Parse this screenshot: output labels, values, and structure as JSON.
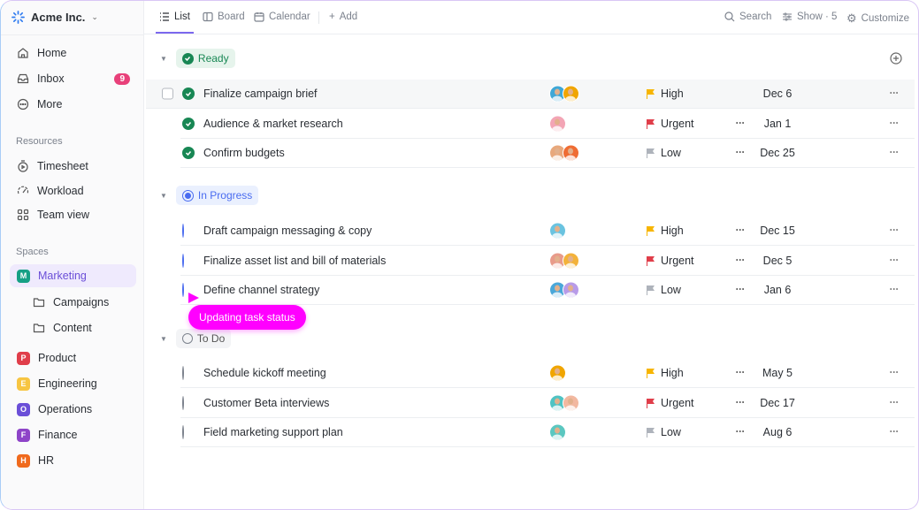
{
  "workspace": {
    "name": "Acme Inc."
  },
  "nav": [
    {
      "label": "Home",
      "icon": "home-icon"
    },
    {
      "label": "Inbox",
      "icon": "inbox-icon",
      "badge": "9"
    },
    {
      "label": "More",
      "icon": "more-icon"
    }
  ],
  "resources": {
    "title": "Resources",
    "items": [
      {
        "label": "Timesheet",
        "icon": "timer-icon"
      },
      {
        "label": "Workload",
        "icon": "gauge-icon"
      },
      {
        "label": "Team view",
        "icon": "grid-icon"
      }
    ]
  },
  "spaces": {
    "title": "Spaces",
    "items": [
      {
        "label": "Marketing",
        "letter": "M",
        "color": "#16a085",
        "active": true
      },
      {
        "label": "Campaigns",
        "folder": true
      },
      {
        "label": "Content",
        "folder": true
      },
      {
        "label": "Product",
        "letter": "P",
        "color": "#e03e4a"
      },
      {
        "label": "Engineering",
        "letter": "E",
        "color": "#f7c542"
      },
      {
        "label": "Operations",
        "letter": "O",
        "color": "#6b4fd8"
      },
      {
        "label": "Finance",
        "letter": "F",
        "color": "#8e44c8"
      },
      {
        "label": "HR",
        "letter": "H",
        "color": "#f06a1d"
      }
    ]
  },
  "views": {
    "tabs": [
      "List",
      "Board",
      "Calendar"
    ],
    "add": "Add",
    "active": "List"
  },
  "tools": {
    "search": "Search",
    "show": "Show · 5",
    "customize": "Customize"
  },
  "priority_colors": {
    "High": "#f7b500",
    "Urgent": "#e03e4a",
    "Low": "#aeb3bb"
  },
  "groups": [
    {
      "label": "Ready",
      "status": "done",
      "tasks": [
        {
          "name": "Finalize campaign brief",
          "avatars": [
            "#3fa7d6",
            "#f0a500"
          ],
          "priority": "High",
          "date": "Dec 6",
          "hover": true
        },
        {
          "name": "Audience & market research",
          "avatars": [
            "#f3a5b5"
          ],
          "priority": "Urgent",
          "date": "Jan 1"
        },
        {
          "name": "Confirm budgets",
          "avatars": [
            "#e8a87c",
            "#ef6c33"
          ],
          "priority": "Low",
          "date": "Dec 25"
        }
      ]
    },
    {
      "label": "In Progress",
      "status": "prog",
      "tasks": [
        {
          "name": "Draft campaign messaging & copy",
          "avatars": [
            "#6ac3e0"
          ],
          "priority": "High",
          "date": "Dec 15"
        },
        {
          "name": "Finalize asset list and bill of materials",
          "avatars": [
            "#e89b8a",
            "#f3b23a"
          ],
          "priority": "Urgent",
          "date": "Dec 5"
        },
        {
          "name": "Define channel strategy",
          "avatars": [
            "#4aa7d9",
            "#b89be8"
          ],
          "priority": "Low",
          "date": "Jan 6"
        }
      ]
    },
    {
      "label": "To Do",
      "status": "todo",
      "tasks": [
        {
          "name": "Schedule kickoff meeting",
          "avatars": [
            "#f0a500"
          ],
          "priority": "High",
          "date": "May 5"
        },
        {
          "name": "Customer Beta interviews",
          "avatars": [
            "#4fc3c3",
            "#f2b8a0"
          ],
          "priority": "Urgent",
          "date": "Dec 17"
        },
        {
          "name": "Field marketing support plan",
          "avatars": [
            "#5bc7c0"
          ],
          "priority": "Low",
          "date": "Aug 6"
        }
      ]
    }
  ],
  "tooltip": "Updating task status"
}
